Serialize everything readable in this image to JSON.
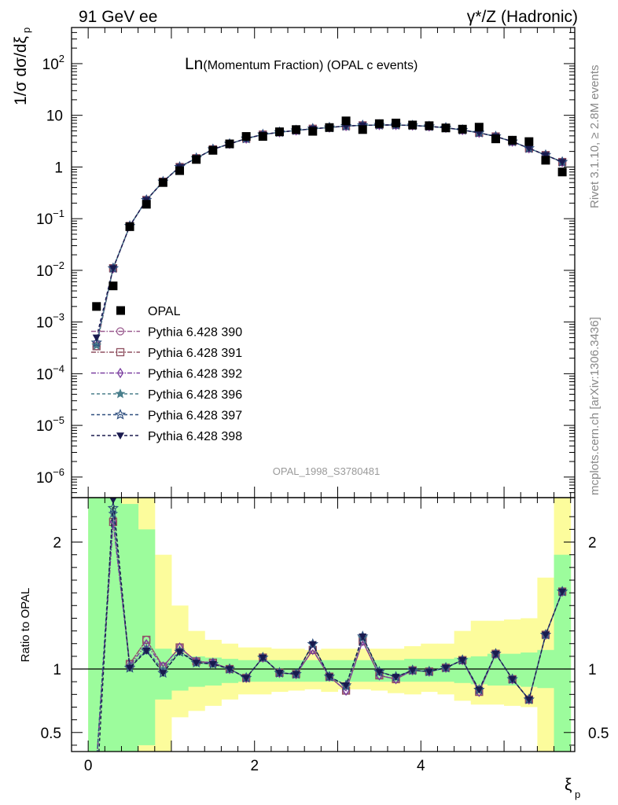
{
  "header": {
    "left": "91 GeV ee",
    "right": "γ*/Z (Hadronic)"
  },
  "side_labels": {
    "rivet": "Rivet 3.1.10, ≥ 2.8M events",
    "mcplots": "mcplots.cern.ch [arXiv:1306.3436]"
  },
  "chart_data": [
    {
      "type": "scatter",
      "panel": "main",
      "title_prefix": "Ln",
      "title_main": "(Momentum Fraction) (OPAL c events)",
      "watermark": "OPAL_1998_S3780481",
      "ylabel": "1/σ dσ/dξ",
      "ylabel_sub": "p",
      "yscale": "log",
      "ylim": [
        4e-07,
        500
      ],
      "xlim": [
        -0.2,
        5.85
      ],
      "grid": false,
      "legend_position": "left-middle",
      "yticks": [
        {
          "v": 100,
          "b": "10",
          "e": "2"
        },
        {
          "v": 10,
          "b": "10",
          "e": ""
        },
        {
          "v": 1,
          "b": "1",
          "e": ""
        },
        {
          "v": 0.1,
          "b": "10",
          "e": "−1"
        },
        {
          "v": 0.01,
          "b": "10",
          "e": "−2"
        },
        {
          "v": 0.001,
          "b": "10",
          "e": "−3"
        },
        {
          "v": 0.0001,
          "b": "10",
          "e": "−4"
        },
        {
          "v": 1e-05,
          "b": "10",
          "e": "−5"
        },
        {
          "v": 1e-06,
          "b": "10",
          "e": "−6"
        }
      ],
      "x": [
        0.1,
        0.3,
        0.5,
        0.7,
        0.9,
        1.1,
        1.3,
        1.5,
        1.7,
        1.9,
        2.1,
        2.3,
        2.5,
        2.7,
        2.9,
        3.1,
        3.3,
        3.5,
        3.7,
        3.9,
        4.1,
        4.3,
        4.5,
        4.7,
        4.9,
        5.1,
        5.3,
        5.5,
        5.7
      ],
      "data": {
        "name": "OPAL",
        "color": "#000000",
        "values": [
          0.002,
          0.005,
          0.07,
          0.19,
          0.5,
          0.85,
          1.4,
          2.1,
          2.8,
          3.9,
          3.9,
          4.8,
          5.3,
          4.9,
          5.8,
          7.8,
          5.3,
          6.9,
          7.1,
          6.5,
          6.3,
          5.7,
          5.4,
          5.9,
          3.5,
          3.3,
          3.1,
          1.35,
          0.8
        ]
      },
      "mc": [
        0.0004,
        0.011,
        0.072,
        0.23,
        0.52,
        1.0,
        1.48,
        2.2,
        2.8,
        3.55,
        4.25,
        4.7,
        5.1,
        5.5,
        5.8,
        6.2,
        6.4,
        6.5,
        6.5,
        6.35,
        6.1,
        5.75,
        5.2,
        4.6,
        3.9,
        3.1,
        2.3,
        1.7,
        1.25
      ],
      "mc_low_offsets": [
        [
          0.85,
          0.85,
          1.0,
          0.88,
          1.0,
          1.25
        ],
        [
          0.88,
          0.88,
          1.0,
          0.9,
          1.0,
          1.25
        ]
      ],
      "series": [
        {
          "name": "Pythia 6.428 390",
          "color": "#9a5b8f",
          "marker": "circle",
          "dash": "6,2,1.5,2"
        },
        {
          "name": "Pythia 6.428 391",
          "color": "#8e4f5f",
          "marker": "square",
          "dash": "6,2,1.5,2"
        },
        {
          "name": "Pythia 6.428 392",
          "color": "#7b3fa0",
          "marker": "diamond",
          "dash": "6,2,1.5,2"
        },
        {
          "name": "Pythia 6.428 396",
          "color": "#4a7f8c",
          "marker": "star",
          "dash": "4,3"
        },
        {
          "name": "Pythia 6.428 397",
          "color": "#2f4f7f",
          "marker": "star-open",
          "dash": "4,3"
        },
        {
          "name": "Pythia 6.428 398",
          "color": "#1a1a4e",
          "marker": "triangle-down",
          "dash": "4,3"
        }
      ]
    },
    {
      "type": "line",
      "panel": "ratio",
      "ylabel": "Ratio to OPAL",
      "xlabel": "ξ",
      "xlabel_sub": "p",
      "ylim": [
        0.35,
        2.35
      ],
      "xlim": [
        -0.2,
        5.85
      ],
      "xticks": [
        0,
        2,
        4
      ],
      "yticks": [
        0.5,
        1,
        2
      ],
      "bands": {
        "edges": [
          0.0,
          0.2,
          0.4,
          0.6,
          0.8,
          1.0,
          1.2,
          1.4,
          1.6,
          1.8,
          2.0,
          2.2,
          2.4,
          2.6,
          2.8,
          3.0,
          3.2,
          3.4,
          3.6,
          3.8,
          4.0,
          4.2,
          4.4,
          4.6,
          4.8,
          5.0,
          5.2,
          5.4,
          5.6,
          5.8
        ],
        "green": [
          [
            0.2,
            3.0
          ],
          [
            0.2,
            3.0
          ],
          [
            0.2,
            2.3
          ],
          [
            0.4,
            2.1
          ],
          [
            0.76,
            1.16
          ],
          [
            0.83,
            1.12
          ],
          [
            0.86,
            1.1
          ],
          [
            0.87,
            1.09
          ],
          [
            0.89,
            1.08
          ],
          [
            0.9,
            1.07
          ],
          [
            0.9,
            1.07
          ],
          [
            0.9,
            1.07
          ],
          [
            0.9,
            1.07
          ],
          [
            0.9,
            1.07
          ],
          [
            0.9,
            1.07
          ],
          [
            0.9,
            1.07
          ],
          [
            0.9,
            1.07
          ],
          [
            0.9,
            1.07
          ],
          [
            0.9,
            1.07
          ],
          [
            0.9,
            1.08
          ],
          [
            0.9,
            1.08
          ],
          [
            0.9,
            1.08
          ],
          [
            0.89,
            1.09
          ],
          [
            0.88,
            1.1
          ],
          [
            0.87,
            1.12
          ],
          [
            0.87,
            1.12
          ],
          [
            0.86,
            1.13
          ],
          [
            0.85,
            1.15
          ],
          [
            0.3,
            1.9
          ]
        ],
        "yellow": [
          [
            0.2,
            3.0
          ],
          [
            0.2,
            3.0
          ],
          [
            0.2,
            2.4
          ],
          [
            0.2,
            2.9
          ],
          [
            0.3,
            1.9
          ],
          [
            0.62,
            1.5
          ],
          [
            0.67,
            1.3
          ],
          [
            0.71,
            1.23
          ],
          [
            0.76,
            1.2
          ],
          [
            0.8,
            1.17
          ],
          [
            0.8,
            1.17
          ],
          [
            0.82,
            1.16
          ],
          [
            0.83,
            1.16
          ],
          [
            0.84,
            1.15
          ],
          [
            0.82,
            1.16
          ],
          [
            0.84,
            1.16
          ],
          [
            0.84,
            1.16
          ],
          [
            0.83,
            1.16
          ],
          [
            0.81,
            1.16
          ],
          [
            0.8,
            1.18
          ],
          [
            0.82,
            1.2
          ],
          [
            0.8,
            1.2
          ],
          [
            0.75,
            1.3
          ],
          [
            0.72,
            1.38
          ],
          [
            0.72,
            1.38
          ],
          [
            0.71,
            1.39
          ],
          [
            0.7,
            1.4
          ],
          [
            0.3,
            1.72
          ],
          [
            0.3,
            2.5
          ]
        ]
      },
      "ratios": {
        "x": [
          0.1,
          0.3,
          0.5,
          0.7,
          0.9,
          1.1,
          1.3,
          1.5,
          1.7,
          1.9,
          2.1,
          2.3,
          2.5,
          2.7,
          2.9,
          3.1,
          3.3,
          3.5,
          3.7,
          3.9,
          4.1,
          4.3,
          4.5,
          4.7,
          4.9,
          5.1,
          5.3,
          5.5,
          5.7
        ],
        "values": [
          0.2,
          2.18,
          1.04,
          1.23,
          1.02,
          1.17,
          1.06,
          1.05,
          1.0,
          0.93,
          1.09,
          0.97,
          0.96,
          1.15,
          0.94,
          0.83,
          1.22,
          0.95,
          0.92,
          0.99,
          0.98,
          1.01,
          1.07,
          0.82,
          1.12,
          0.92,
          0.76,
          1.27,
          1.61
        ],
        "tweaks": [
          [
            1.0,
            1.0,
            1.0,
            1.0,
            1.0,
            1.0
          ],
          [
            1.0,
            0.99,
            0.99,
            1.02,
            1.04,
            1.07
          ],
          [
            1.0,
            1.0,
            0.99,
            0.98,
            0.97,
            0.97
          ],
          [
            1.0,
            1.0,
            0.97,
            0.94,
            0.93,
            0.93
          ],
          [
            1.0,
            1.0,
            1.0,
            0.97,
            0.95,
            0.95
          ],
          [
            1.0,
            1.0,
            1.0,
            0.98,
            0.97,
            0.97
          ],
          [
            1.0,
            1.0,
            1.0,
            0.99,
            0.99,
            0.99
          ],
          [
            1.0,
            1.0,
            1.0,
            0.99,
            0.99,
            0.99
          ],
          [
            1.0,
            1.0,
            1.0,
            1.0,
            1.0,
            1.0
          ],
          [
            1.0,
            1.0,
            1.0,
            1.0,
            1.0,
            1.0
          ],
          [
            1.0,
            1.0,
            1.0,
            1.0,
            1.0,
            1.0
          ],
          [
            1.0,
            1.0,
            1.0,
            1.0,
            1.0,
            1.0
          ],
          [
            1.0,
            1.0,
            1.0,
            1.0,
            1.0,
            1.0
          ],
          [
            1.0,
            1.0,
            1.0,
            1.04,
            1.04,
            1.04
          ],
          [
            1.0,
            1.0,
            1.0,
            1.0,
            1.0,
            1.0
          ],
          [
            1.0,
            1.0,
            1.0,
            1.04,
            1.05,
            1.05
          ],
          [
            1.0,
            1.0,
            1.0,
            1.02,
            1.03,
            1.03
          ],
          [
            1.0,
            1.0,
            1.0,
            1.03,
            1.03,
            1.03
          ],
          [
            1.0,
            1.0,
            1.0,
            1.02,
            1.02,
            1.02
          ],
          [
            1.0,
            1.0,
            1.0,
            1.0,
            1.0,
            1.0
          ],
          [
            1.0,
            1.0,
            1.0,
            1.0,
            1.0,
            1.0
          ],
          [
            1.0,
            1.0,
            1.0,
            1.0,
            1.0,
            1.0
          ],
          [
            1.0,
            1.0,
            1.0,
            1.0,
            1.0,
            1.0
          ],
          [
            1.0,
            1.0,
            1.0,
            1.02,
            1.02,
            1.02
          ],
          [
            1.0,
            1.0,
            1.0,
            1.0,
            1.0,
            1.0
          ],
          [
            1.0,
            1.0,
            1.0,
            1.0,
            1.0,
            1.0
          ],
          [
            1.0,
            1.0,
            1.0,
            1.0,
            1.0,
            1.0
          ],
          [
            1.0,
            1.0,
            1.0,
            1.0,
            1.0,
            1.0
          ],
          [
            1.0,
            1.0,
            1.0,
            1.0,
            1.0,
            1.0
          ]
        ],
        "first_point": [
          0.25,
          0.25,
          0.25,
          0.25,
          0.25,
          0.0
        ]
      },
      "band_colors": {
        "green": "#9cfc9c",
        "yellow": "#fcfc9c"
      },
      "reference_line": 1
    }
  ]
}
